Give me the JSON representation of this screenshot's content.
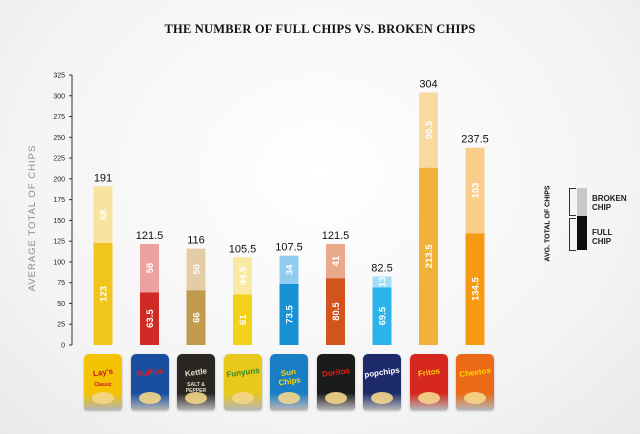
{
  "title": "THE NUMBER OF FULL CHIPS VS. BROKEN CHIPS",
  "chart_data": {
    "type": "bar",
    "stacked": true,
    "title": "THE NUMBER OF FULL CHIPS VS. BROKEN CHIPS",
    "ylabel": "AVERAGE TOTAL OF CHIPS",
    "xlabel": "",
    "ylim": [
      0,
      325
    ],
    "yticks": [
      0,
      25,
      50,
      75,
      100,
      125,
      150,
      175,
      200,
      225,
      250,
      275,
      300,
      325
    ],
    "grid": false,
    "categories": [
      "Lay's Classic",
      "Ruffles",
      "Kettle Salt & Pepper",
      "Funyuns",
      "Sun Chips",
      "Doritos",
      "Popchips",
      "Fritos",
      "Cheetos"
    ],
    "series": [
      {
        "name": "FULL CHIP",
        "values": [
          123,
          63.5,
          66,
          61,
          73.5,
          80.5,
          69.5,
          213.5,
          134.5
        ]
      },
      {
        "name": "BROKEN CHIP",
        "values": [
          68,
          58,
          50,
          44.5,
          34,
          41,
          13,
          90.5,
          103
        ]
      }
    ],
    "totals": [
      "191",
      "121.5",
      "116",
      "105.5",
      "107.5",
      "121.5",
      "82.5",
      "304",
      "237.5"
    ],
    "full_labels": [
      "123",
      "63.5",
      "66",
      "61",
      "73.5",
      "80.5",
      "69.5",
      "213.5",
      "134.5"
    ],
    "broken_labels": [
      "68",
      "58",
      "50",
      "44.5",
      "34",
      "41",
      "13",
      "90.5",
      "103"
    ],
    "colors_full": [
      "#f0c61c",
      "#cf2a26",
      "#c29a4c",
      "#f2d11a",
      "#1790d6",
      "#d4521c",
      "#2bb3ea",
      "#f2b23a",
      "#f59a11"
    ],
    "colors_broken": [
      "#f8e3a0",
      "#eda19e",
      "#e2cda6",
      "#fae9a2",
      "#8fccef",
      "#eba98c",
      "#a4def6",
      "#f8d9a0",
      "#fbcd8a"
    ],
    "legend": {
      "title": "AVG. TOTAL OF CHIPS",
      "broken_label_1": "BROKEN",
      "broken_label_2": "CHIP",
      "full_label_1": "FULL",
      "full_label_2": "CHIP",
      "placement": "right"
    }
  },
  "logos": [
    {
      "text": "Lay's",
      "sub": "Classic",
      "color": "#f5c400",
      "text_color": "#c8102e"
    },
    {
      "text": "Ruffles",
      "sub": "",
      "color": "#1a4fa0",
      "text_color": "#e21b23"
    },
    {
      "text": "Kettle",
      "sub": "SALT & PEPPER",
      "color": "#2a2622",
      "text_color": "#e9dfc6"
    },
    {
      "text": "Funyuns",
      "sub": "",
      "color": "#e8c81a",
      "text_color": "#2e8a34"
    },
    {
      "text": "Sun Chips",
      "sub": "",
      "color": "#1a7ec7",
      "text_color": "#ffd200"
    },
    {
      "text": "Doritos",
      "sub": "",
      "color": "#1b1b1b",
      "text_color": "#e2231a"
    },
    {
      "text": "popchips",
      "sub": "",
      "color": "#1d2a6b",
      "text_color": "#ffffff"
    },
    {
      "text": "Fritos",
      "sub": "",
      "color": "#d6281f",
      "text_color": "#ffd200"
    },
    {
      "text": "Cheetos",
      "sub": "",
      "color": "#ea6a16",
      "text_color": "#ffd200"
    }
  ]
}
